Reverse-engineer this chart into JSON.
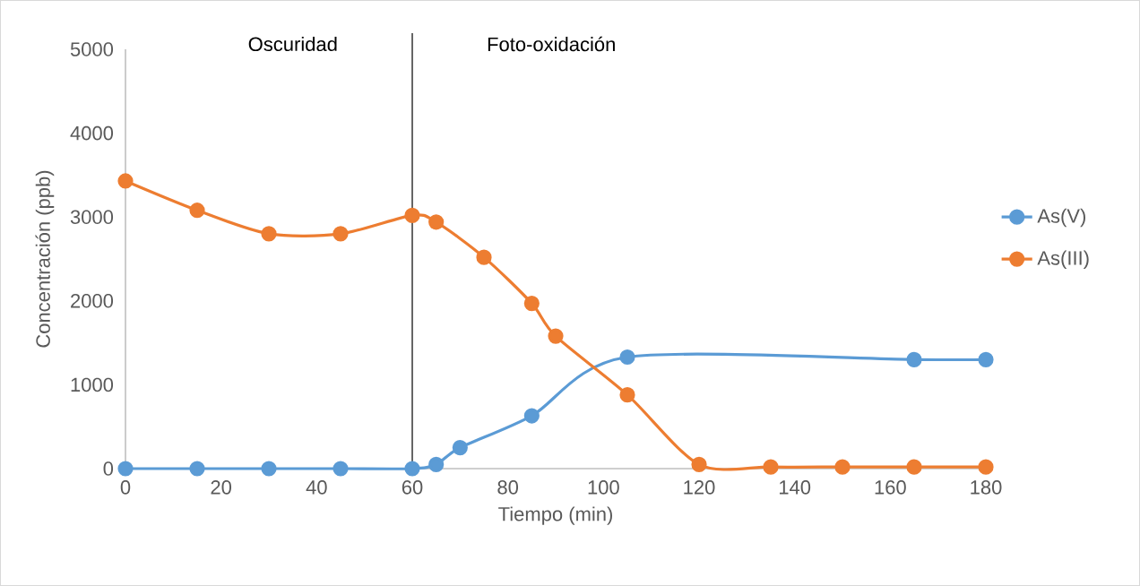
{
  "chart_data": {
    "type": "line",
    "xlabel": "Tiempo (min)",
    "ylabel": "Concentración (ppb)",
    "series": [
      {
        "name": "As(V)",
        "color": "#5b9bd5",
        "x": [
          0,
          15,
          30,
          45,
          60,
          65,
          70,
          85,
          105,
          165,
          180
        ],
        "values": [
          0,
          0,
          0,
          0,
          0,
          50,
          250,
          630,
          1330,
          1300,
          1300
        ]
      },
      {
        "name": "As(III)",
        "color": "#ed7d31",
        "x": [
          0,
          15,
          30,
          45,
          60,
          65,
          75,
          85,
          90,
          105,
          120,
          135,
          150,
          165,
          180
        ],
        "values": [
          3430,
          3080,
          2800,
          2800,
          3020,
          2940,
          2520,
          1970,
          1580,
          880,
          50,
          20,
          20,
          20,
          20
        ]
      }
    ],
    "xlim": [
      0,
      180
    ],
    "ylim": [
      0,
      5000
    ],
    "xticks": [
      0,
      20,
      40,
      60,
      80,
      100,
      120,
      140,
      160,
      180
    ],
    "yticks": [
      0,
      1000,
      2000,
      3000,
      4000,
      5000
    ],
    "ref_lines": [
      {
        "axis": "x",
        "value": 60,
        "color": "#000000"
      }
    ],
    "annotations": [
      "Oscuridad",
      "Foto-oxidación"
    ],
    "legend": "right",
    "marker": "circle",
    "line_style": "solid"
  }
}
